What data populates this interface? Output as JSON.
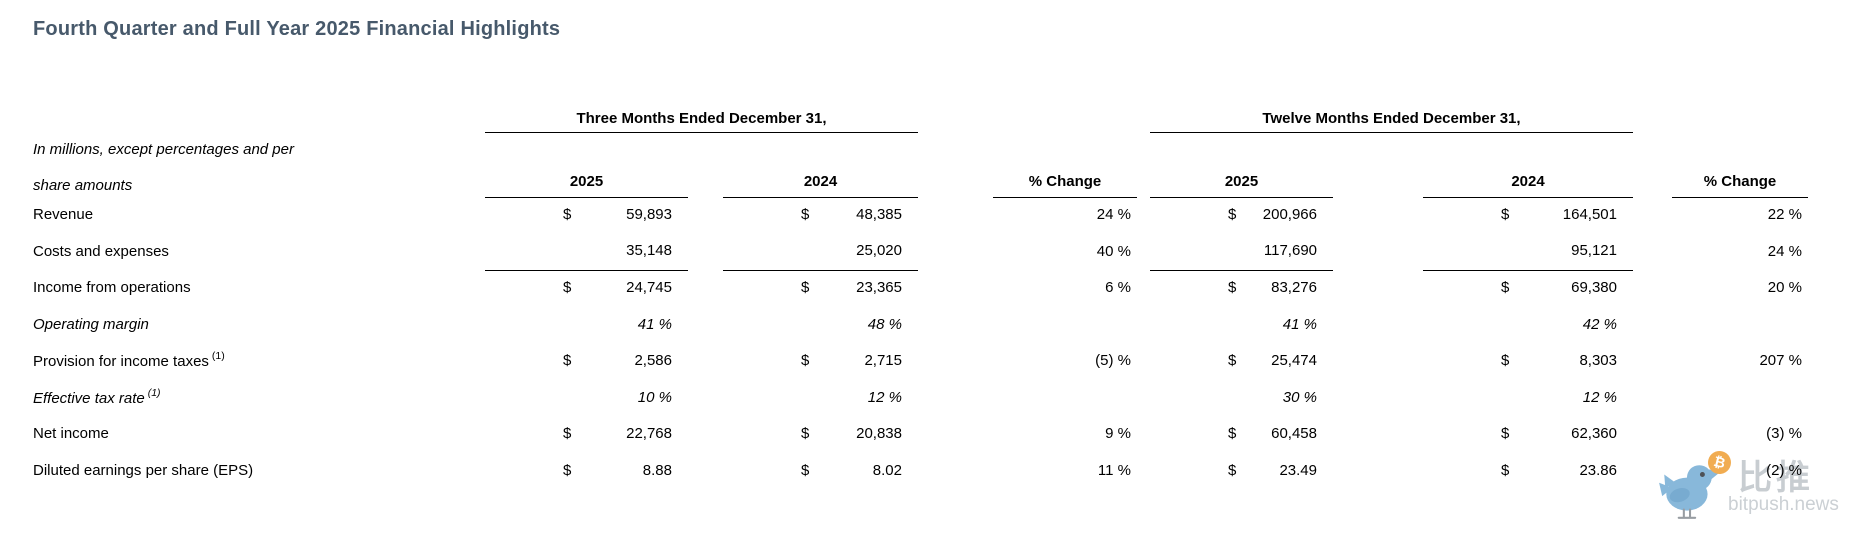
{
  "page": {
    "title": "Fourth Quarter and Full Year 2025 Financial Highlights"
  },
  "table": {
    "note_line1": "In millions, except percentages and per",
    "note_line2": "share amounts",
    "groups": [
      {
        "label": "Three Months Ended December 31,"
      },
      {
        "label": "Twelve Months Ended December 31,"
      }
    ],
    "columns": [
      "2025",
      "2024",
      "% Change",
      "2025",
      "2024",
      "% Change"
    ],
    "rows": [
      {
        "label": "Revenue",
        "italic": false,
        "sup": "",
        "rule_below": false,
        "cells": [
          {
            "d": "$",
            "v": "59,893"
          },
          {
            "d": "$",
            "v": "48,385"
          },
          {
            "v": "24 %"
          },
          {
            "d": "$",
            "v": "200,966"
          },
          {
            "d": "$",
            "v": "164,501"
          },
          {
            "v": "22 %"
          }
        ]
      },
      {
        "label": "Costs and expenses",
        "italic": false,
        "sup": "",
        "rule_below": true,
        "cells": [
          {
            "d": "",
            "v": "35,148"
          },
          {
            "d": "",
            "v": "25,020"
          },
          {
            "v": "40 %"
          },
          {
            "d": "",
            "v": "117,690"
          },
          {
            "d": "",
            "v": "95,121"
          },
          {
            "v": "24 %"
          }
        ]
      },
      {
        "label": "Income from operations",
        "italic": false,
        "sup": "",
        "rule_below": false,
        "cells": [
          {
            "d": "$",
            "v": "24,745"
          },
          {
            "d": "$",
            "v": "23,365"
          },
          {
            "v": "6 %"
          },
          {
            "d": "$",
            "v": "83,276"
          },
          {
            "d": "$",
            "v": "69,380"
          },
          {
            "v": "20 %"
          }
        ]
      },
      {
        "label": "Operating margin",
        "italic": true,
        "sup": "",
        "rule_below": false,
        "cells": [
          {
            "d": "",
            "v": "41 %"
          },
          {
            "d": "",
            "v": "48 %"
          },
          {
            "v": ""
          },
          {
            "d": "",
            "v": "41 %"
          },
          {
            "d": "",
            "v": "42 %"
          },
          {
            "v": ""
          }
        ]
      },
      {
        "label": "Provision for income taxes",
        "italic": false,
        "sup": "(1)",
        "rule_below": false,
        "cells": [
          {
            "d": "$",
            "v": "2,586"
          },
          {
            "d": "$",
            "v": "2,715"
          },
          {
            "v": "(5) %"
          },
          {
            "d": "$",
            "v": "25,474"
          },
          {
            "d": "$",
            "v": "8,303"
          },
          {
            "v": "207 %"
          }
        ]
      },
      {
        "label": "Effective tax rate",
        "italic": true,
        "sup": "(1)",
        "rule_below": false,
        "cells": [
          {
            "d": "",
            "v": "10 %"
          },
          {
            "d": "",
            "v": "12 %"
          },
          {
            "v": ""
          },
          {
            "d": "",
            "v": "30 %"
          },
          {
            "d": "",
            "v": "12 %"
          },
          {
            "v": ""
          }
        ]
      },
      {
        "label": "Net income",
        "italic": false,
        "sup": "",
        "rule_below": false,
        "cells": [
          {
            "d": "$",
            "v": "22,768"
          },
          {
            "d": "$",
            "v": "20,838"
          },
          {
            "v": "9 %"
          },
          {
            "d": "$",
            "v": "60,458"
          },
          {
            "d": "$",
            "v": "62,360"
          },
          {
            "v": "(3) %"
          }
        ]
      },
      {
        "label": "Diluted earnings per share (EPS)",
        "italic": false,
        "sup": "",
        "rule_below": false,
        "cells": [
          {
            "d": "$",
            "v": "8.88"
          },
          {
            "d": "$",
            "v": "8.02"
          },
          {
            "v": "11 %"
          },
          {
            "d": "$",
            "v": "23.49"
          },
          {
            "d": "$",
            "v": "23.86"
          },
          {
            "v": "(2) %"
          }
        ]
      }
    ]
  },
  "watermark": {
    "brand_cn": "比推",
    "brand_domain": "bitpush.news",
    "coin_symbol": "₿",
    "bird_color": "#7cb1d6",
    "coin_color": "#f0a43f"
  },
  "colors": {
    "title": "#47596b",
    "text": "#000000",
    "rule": "#000000",
    "watermark_text": "#b3b9c0"
  }
}
